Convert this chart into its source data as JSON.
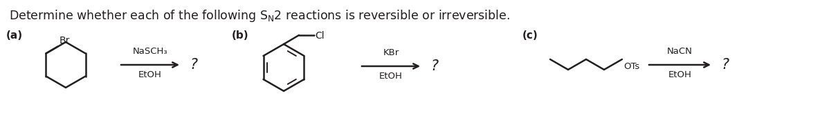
{
  "background_color": "#ffffff",
  "text_color": "#231f20",
  "fig_width": 12.11,
  "fig_height": 1.74,
  "dpi": 100,
  "section_a_label": "(a)",
  "section_b_label": "(b)",
  "section_c_label": "(c)",
  "reagent_a_line1": "NaSCH₃",
  "reagent_a_line2": "EtOH",
  "reagent_b_line1": "KBr",
  "reagent_b_line2": "EtOH",
  "reagent_c_line1": "NaCN",
  "reagent_c_line2": "EtOH",
  "leaving_a": "Br",
  "leaving_b": "Cl",
  "leaving_c": "OTs",
  "question_mark": "?",
  "line_color": "#231f20",
  "label_fontsize": 11,
  "reagent_fontsize": 9.5,
  "title_fontsize": 12.5
}
